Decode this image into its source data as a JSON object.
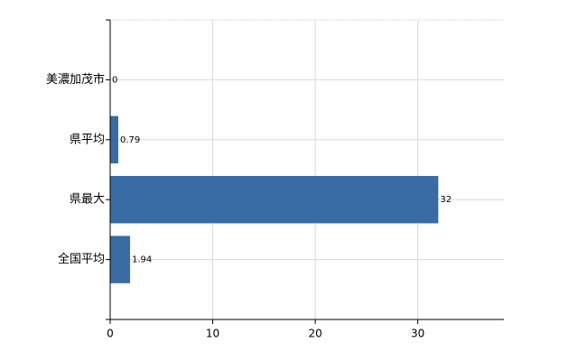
{
  "chart_data": {
    "type": "bar",
    "orientation": "horizontal",
    "categories": [
      "美濃加茂市",
      "県平均",
      "県最大",
      "全国平均"
    ],
    "values": [
      0,
      0.79,
      32,
      1.94
    ],
    "color": "#3a6ba5",
    "xlim": [
      0,
      38.4
    ],
    "xticks": [
      0,
      10,
      20,
      30
    ],
    "grid": true
  }
}
